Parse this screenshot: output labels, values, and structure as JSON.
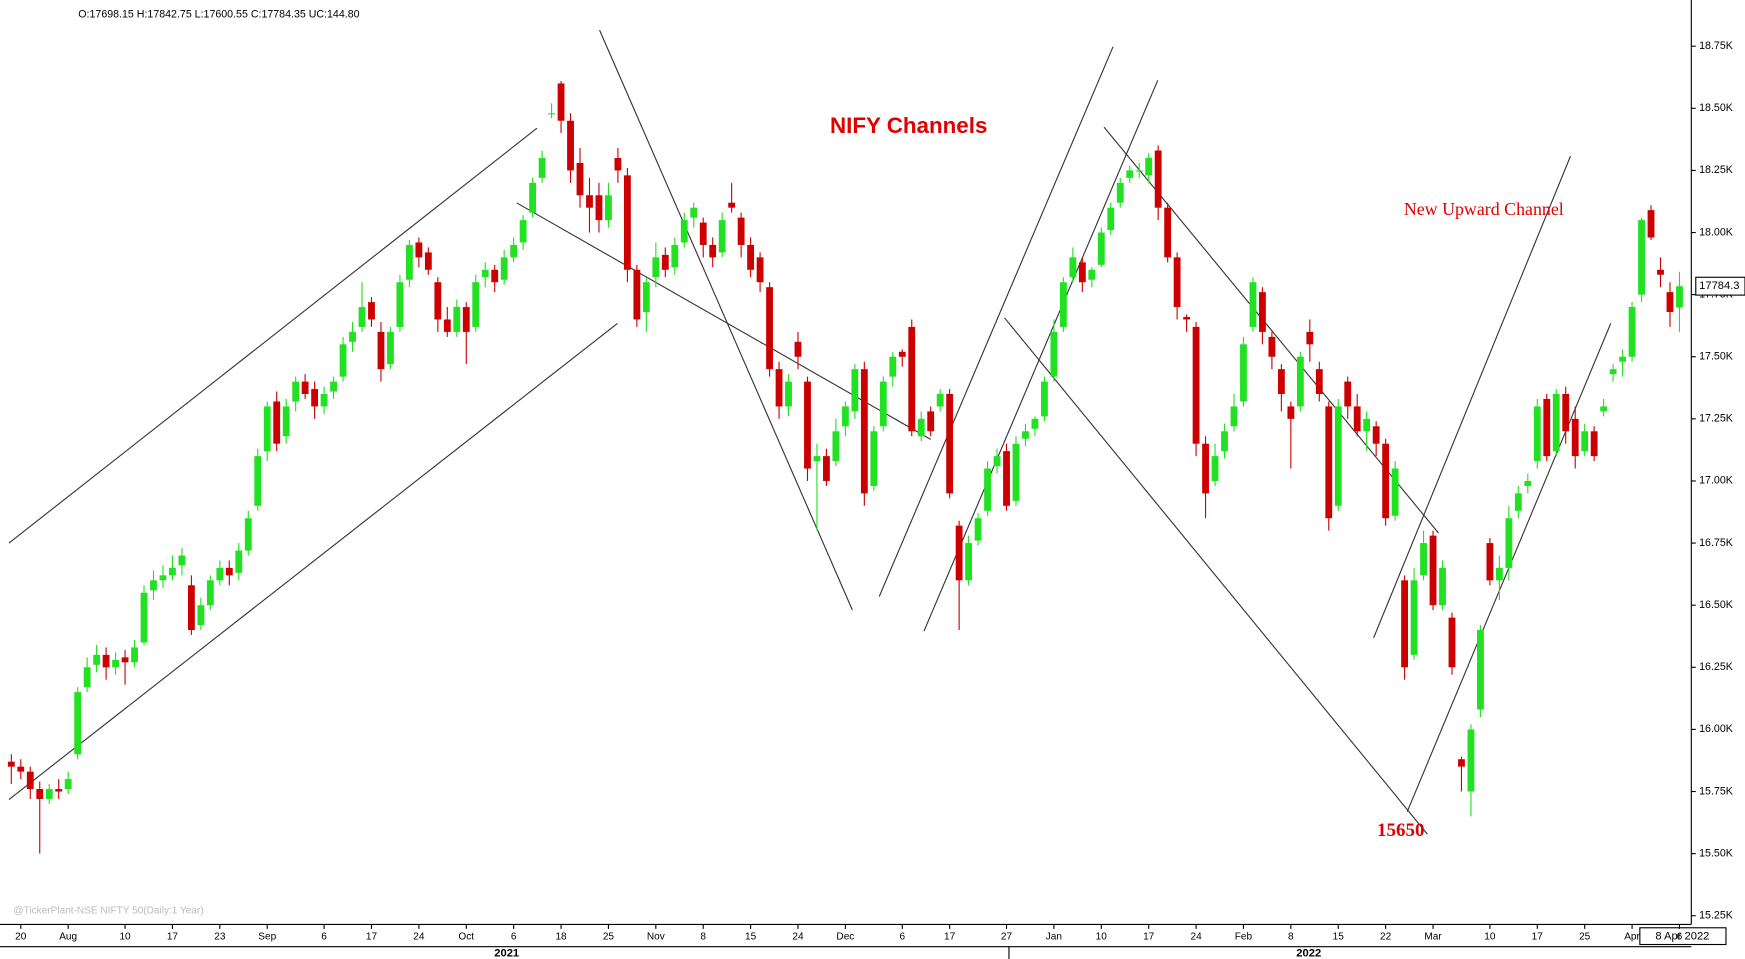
{
  "chart_data": {
    "type": "candlestick",
    "header": "O:17698.15 H:17842.75 L:17600.55 C:17784.35 UC:144.80",
    "title": "NIFY Channels",
    "annotations": [
      "New Upward Channel",
      "15650"
    ],
    "watermark": "@TickerPlant-NSE NIFTY 50(Daily:1 Year)",
    "last_price_label": "17784.3",
    "date_label": "8 Apr 2022",
    "years": [
      "2021",
      "2022"
    ],
    "up_color": "#22e022",
    "down_color": "#cc0000",
    "ylim": [
      15215,
      18900
    ],
    "xlim": [
      -0.25,
      177.25
    ],
    "yticks": [
      {
        "value": 18750,
        "label": "18.75K"
      },
      {
        "value": 18500,
        "label": "18.50K"
      },
      {
        "value": 18250,
        "label": "18.25K"
      },
      {
        "value": 18000,
        "label": "18.00K"
      },
      {
        "value": 17750,
        "label": "17.75K"
      },
      {
        "value": 17500,
        "label": "17.50K"
      },
      {
        "value": 17250,
        "label": "17.25K"
      },
      {
        "value": 17000,
        "label": "17.00K"
      },
      {
        "value": 16750,
        "label": "16.75K"
      },
      {
        "value": 16500,
        "label": "16.50K"
      },
      {
        "value": 16250,
        "label": "16.25K"
      },
      {
        "value": 16000,
        "label": "16.00K"
      },
      {
        "value": 15750,
        "label": "15.75K"
      },
      {
        "value": 15500,
        "label": "15.50K"
      },
      {
        "value": 15250,
        "label": "15.25K"
      }
    ],
    "xticks": [
      {
        "value": 1,
        "label": "20"
      },
      {
        "value": 6,
        "label": "Aug"
      },
      {
        "value": 12,
        "label": "10"
      },
      {
        "value": 17,
        "label": "17"
      },
      {
        "value": 22,
        "label": "23"
      },
      {
        "value": 27,
        "label": "Sep"
      },
      {
        "value": 33,
        "label": "6"
      },
      {
        "value": 38,
        "label": "17"
      },
      {
        "value": 43,
        "label": "24"
      },
      {
        "value": 48,
        "label": "Oct"
      },
      {
        "value": 53,
        "label": "6"
      },
      {
        "value": 58,
        "label": "18"
      },
      {
        "value": 63,
        "label": "25"
      },
      {
        "value": 68,
        "label": "Nov"
      },
      {
        "value": 73,
        "label": "8"
      },
      {
        "value": 78,
        "label": "15"
      },
      {
        "value": 83,
        "label": "24"
      },
      {
        "value": 88,
        "label": "Dec"
      },
      {
        "value": 94,
        "label": "6"
      },
      {
        "value": 99,
        "label": "17"
      },
      {
        "value": 105,
        "label": "27"
      },
      {
        "value": 110,
        "label": "Jan"
      },
      {
        "value": 115,
        "label": "10"
      },
      {
        "value": 120,
        "label": "17"
      },
      {
        "value": 125,
        "label": "24"
      },
      {
        "value": 130,
        "label": "Feb"
      },
      {
        "value": 135,
        "label": "8"
      },
      {
        "value": 140,
        "label": "15"
      },
      {
        "value": 145,
        "label": "22"
      },
      {
        "value": 150,
        "label": "Mar"
      },
      {
        "value": 156,
        "label": "10"
      },
      {
        "value": 161,
        "label": "17"
      },
      {
        "value": 166,
        "label": "25"
      },
      {
        "value": 171,
        "label": "Apr"
      },
      {
        "value": 176,
        "label": "6"
      }
    ],
    "candles": [
      [
        15870,
        15900,
        15780,
        15850
      ],
      [
        15850,
        15880,
        15800,
        15830
      ],
      [
        15830,
        15850,
        15720,
        15760
      ],
      [
        15760,
        15790,
        15500,
        15720
      ],
      [
        15720,
        15780,
        15700,
        15760
      ],
      [
        15760,
        15800,
        15720,
        15750
      ],
      [
        15760,
        15830,
        15740,
        15800
      ],
      [
        15900,
        16170,
        15880,
        16150
      ],
      [
        16170,
        16290,
        16150,
        16250
      ],
      [
        16260,
        16340,
        16230,
        16300
      ],
      [
        16300,
        16330,
        16200,
        16250
      ],
      [
        16250,
        16310,
        16220,
        16280
      ],
      [
        16290,
        16320,
        16180,
        16270
      ],
      [
        16270,
        16360,
        16250,
        16330
      ],
      [
        16350,
        16580,
        16340,
        16550
      ],
      [
        16560,
        16640,
        16520,
        16600
      ],
      [
        16600,
        16660,
        16570,
        16620
      ],
      [
        16620,
        16700,
        16600,
        16650
      ],
      [
        16660,
        16730,
        16620,
        16700
      ],
      [
        16580,
        16620,
        16380,
        16400
      ],
      [
        16420,
        16530,
        16400,
        16500
      ],
      [
        16500,
        16620,
        16480,
        16600
      ],
      [
        16600,
        16680,
        16580,
        16650
      ],
      [
        16650,
        16680,
        16580,
        16620
      ],
      [
        16630,
        16750,
        16600,
        16720
      ],
      [
        16720,
        16880,
        16700,
        16850
      ],
      [
        16900,
        17130,
        16880,
        17100
      ],
      [
        17120,
        17320,
        17080,
        17300
      ],
      [
        17320,
        17360,
        17120,
        17150
      ],
      [
        17180,
        17330,
        17150,
        17300
      ],
      [
        17320,
        17420,
        17280,
        17400
      ],
      [
        17400,
        17430,
        17330,
        17350
      ],
      [
        17370,
        17400,
        17250,
        17300
      ],
      [
        17300,
        17380,
        17270,
        17350
      ],
      [
        17360,
        17420,
        17330,
        17400
      ],
      [
        17420,
        17580,
        17400,
        17550
      ],
      [
        17560,
        17640,
        17520,
        17600
      ],
      [
        17620,
        17800,
        17600,
        17700
      ],
      [
        17720,
        17740,
        17620,
        17650
      ],
      [
        17600,
        17640,
        17400,
        17450
      ],
      [
        17470,
        17620,
        17450,
        17600
      ],
      [
        17620,
        17830,
        17600,
        17800
      ],
      [
        17810,
        17970,
        17780,
        17950
      ],
      [
        17960,
        17980,
        17860,
        17900
      ],
      [
        17920,
        17940,
        17830,
        17850
      ],
      [
        17800,
        17820,
        17600,
        17650
      ],
      [
        17650,
        17700,
        17580,
        17600
      ],
      [
        17600,
        17730,
        17580,
        17700
      ],
      [
        17700,
        17720,
        17470,
        17600
      ],
      [
        17620,
        17830,
        17600,
        17800
      ],
      [
        17820,
        17880,
        17780,
        17850
      ],
      [
        17850,
        17870,
        17760,
        17800
      ],
      [
        17810,
        17930,
        17790,
        17900
      ],
      [
        17900,
        17980,
        17880,
        17950
      ],
      [
        17960,
        18070,
        17930,
        18050
      ],
      [
        18080,
        18220,
        18060,
        18200
      ],
      [
        18220,
        18330,
        18200,
        18300
      ],
      [
        18480,
        18520,
        18460,
        18480
      ],
      [
        18600,
        18610,
        18400,
        18450
      ],
      [
        18450,
        18480,
        18200,
        18250
      ],
      [
        18280,
        18340,
        18100,
        18150
      ],
      [
        18150,
        18220,
        18000,
        18100
      ],
      [
        18150,
        18200,
        18000,
        18050
      ],
      [
        18050,
        18200,
        18020,
        18150
      ],
      [
        18300,
        18340,
        18200,
        18250
      ],
      [
        18230,
        18260,
        17800,
        17850
      ],
      [
        17850,
        17870,
        17620,
        17650
      ],
      [
        17680,
        17820,
        17600,
        17800
      ],
      [
        17820,
        17960,
        17780,
        17900
      ],
      [
        17910,
        17940,
        17820,
        17850
      ],
      [
        17860,
        17980,
        17830,
        17950
      ],
      [
        17960,
        18080,
        17940,
        18050
      ],
      [
        18060,
        18120,
        18020,
        18100
      ],
      [
        18040,
        18060,
        17900,
        17950
      ],
      [
        17950,
        17980,
        17860,
        17900
      ],
      [
        17920,
        18080,
        17900,
        18050
      ],
      [
        18120,
        18200,
        18080,
        18100
      ],
      [
        18060,
        18080,
        17900,
        17950
      ],
      [
        17950,
        17980,
        17820,
        17850
      ],
      [
        17900,
        17920,
        17760,
        17800
      ],
      [
        17780,
        17800,
        17420,
        17450
      ],
      [
        17450,
        17480,
        17250,
        17300
      ],
      [
        17300,
        17430,
        17260,
        17400
      ],
      [
        17560,
        17600,
        17450,
        17500
      ],
      [
        17400,
        17420,
        17000,
        17050
      ],
      [
        17080,
        17150,
        16800,
        17100
      ],
      [
        17100,
        17130,
        16980,
        17000
      ],
      [
        17080,
        17250,
        17060,
        17200
      ],
      [
        17220,
        17320,
        17180,
        17300
      ],
      [
        17280,
        17470,
        17250,
        17450
      ],
      [
        17450,
        17480,
        16900,
        16950
      ],
      [
        16980,
        17220,
        16960,
        17200
      ],
      [
        17220,
        17420,
        17200,
        17400
      ],
      [
        17420,
        17520,
        17380,
        17500
      ],
      [
        17520,
        17530,
        17460,
        17500
      ],
      [
        17620,
        17650,
        17180,
        17200
      ],
      [
        17180,
        17280,
        17160,
        17250
      ],
      [
        17280,
        17300,
        17180,
        17200
      ],
      [
        17300,
        17370,
        17280,
        17350
      ],
      [
        17350,
        17370,
        16930,
        16950
      ],
      [
        16820,
        16840,
        16400,
        16600
      ],
      [
        16600,
        16780,
        16580,
        16750
      ],
      [
        16760,
        16870,
        16740,
        16850
      ],
      [
        16880,
        17080,
        16860,
        17050
      ],
      [
        17060,
        17130,
        17030,
        17100
      ],
      [
        17120,
        17150,
        16880,
        16900
      ],
      [
        16920,
        17180,
        16900,
        17150
      ],
      [
        17170,
        17230,
        17140,
        17200
      ],
      [
        17210,
        17260,
        17180,
        17250
      ],
      [
        17260,
        17420,
        17240,
        17400
      ],
      [
        17420,
        17650,
        17400,
        17600
      ],
      [
        17620,
        17820,
        17600,
        17800
      ],
      [
        17820,
        17940,
        17800,
        17900
      ],
      [
        17880,
        17900,
        17760,
        17800
      ],
      [
        17810,
        17860,
        17780,
        17850
      ],
      [
        17870,
        18020,
        17860,
        18000
      ],
      [
        18010,
        18120,
        17990,
        18100
      ],
      [
        18120,
        18220,
        18100,
        18200
      ],
      [
        18220,
        18270,
        18200,
        18250
      ],
      [
        18250,
        18280,
        18220,
        18250
      ],
      [
        18230,
        18320,
        18200,
        18300
      ],
      [
        18330,
        18350,
        18050,
        18100
      ],
      [
        18100,
        18120,
        17880,
        17900
      ],
      [
        17900,
        17920,
        17650,
        17700
      ],
      [
        17660,
        17670,
        17600,
        17650
      ],
      [
        17620,
        17640,
        17100,
        17150
      ],
      [
        17150,
        17180,
        16850,
        16950
      ],
      [
        17000,
        17150,
        16980,
        17100
      ],
      [
        17120,
        17230,
        17090,
        17200
      ],
      [
        17220,
        17350,
        17200,
        17300
      ],
      [
        17320,
        17580,
        17300,
        17550
      ],
      [
        17620,
        17820,
        17600,
        17800
      ],
      [
        17760,
        17780,
        17550,
        17600
      ],
      [
        17580,
        17600,
        17450,
        17500
      ],
      [
        17450,
        17470,
        17280,
        17350
      ],
      [
        17300,
        17320,
        17050,
        17250
      ],
      [
        17300,
        17520,
        17280,
        17500
      ],
      [
        17600,
        17650,
        17480,
        17550
      ],
      [
        17450,
        17480,
        17320,
        17350
      ],
      [
        17300,
        17320,
        16800,
        16850
      ],
      [
        16900,
        17330,
        16880,
        17300
      ],
      [
        17400,
        17420,
        17250,
        17300
      ],
      [
        17300,
        17350,
        17180,
        17200
      ],
      [
        17200,
        17280,
        17120,
        17250
      ],
      [
        17220,
        17240,
        17100,
        17150
      ],
      [
        17150,
        17170,
        16820,
        16850
      ],
      [
        16860,
        17080,
        16840,
        17050
      ],
      [
        16600,
        16620,
        16200,
        16250
      ],
      [
        16300,
        16650,
        16280,
        16600
      ],
      [
        16620,
        16800,
        16600,
        16750
      ],
      [
        16780,
        16800,
        16480,
        16500
      ],
      [
        16500,
        16680,
        16480,
        16650
      ],
      [
        16450,
        16470,
        16220,
        16250
      ],
      [
        15880,
        15890,
        15750,
        15850
      ],
      [
        15750,
        16020,
        15650,
        16000
      ],
      [
        16080,
        16420,
        16050,
        16400
      ],
      [
        16750,
        16770,
        16580,
        16600
      ],
      [
        16600,
        16700,
        16520,
        16650
      ],
      [
        16650,
        16900,
        16600,
        16850
      ],
      [
        16880,
        16980,
        16850,
        16950
      ],
      [
        16980,
        17030,
        16950,
        17000
      ],
      [
        17080,
        17330,
        17050,
        17300
      ],
      [
        17330,
        17350,
        17080,
        17100
      ],
      [
        17120,
        17370,
        17100,
        17350
      ],
      [
        17350,
        17380,
        17150,
        17200
      ],
      [
        17250,
        17300,
        17050,
        17100
      ],
      [
        17120,
        17230,
        17100,
        17200
      ],
      [
        17200,
        17220,
        17080,
        17100
      ],
      [
        17280,
        17330,
        17260,
        17300
      ],
      [
        17430,
        17470,
        17400,
        17450
      ],
      [
        17480,
        17530,
        17420,
        17500
      ],
      [
        17500,
        17720,
        17480,
        17700
      ],
      [
        17750,
        18060,
        17720,
        18050
      ],
      [
        18090,
        18110,
        17970,
        17980
      ],
      [
        17850,
        17900,
        17780,
        17830
      ],
      [
        17760,
        17800,
        17620,
        17680
      ],
      [
        17698,
        17842,
        17600,
        17784
      ]
    ]
  }
}
